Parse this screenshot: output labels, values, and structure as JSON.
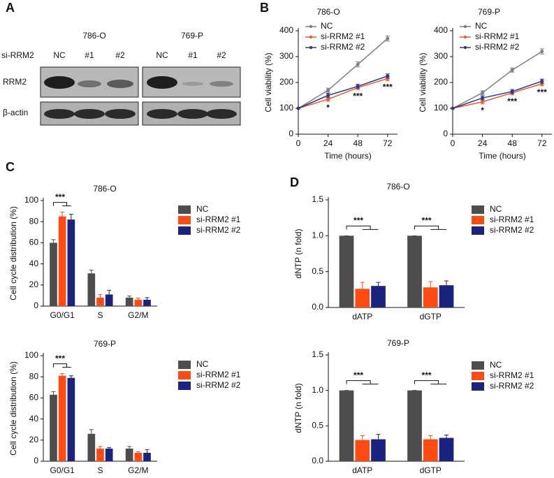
{
  "panel_labels": [
    "A",
    "B",
    "C",
    "D"
  ],
  "blot": {
    "cell_lines": [
      "786-O",
      "769-P"
    ],
    "row_label": "si-RRM2",
    "lanes": [
      "NC",
      "#1",
      "#2"
    ],
    "proteins": [
      "RRM2",
      "β-actin"
    ]
  },
  "chart_data": [
    {
      "type": "line",
      "title": "786-O",
      "xlabel": "Time (hours)",
      "ylabel": "Cell viability (%)",
      "x": [
        0,
        24,
        48,
        72
      ],
      "xlim": [
        0,
        80
      ],
      "xticks": [
        0,
        24,
        48,
        72
      ],
      "ylim": [
        0,
        400
      ],
      "yticks": [
        0,
        100,
        200,
        300,
        400
      ],
      "legend": "upper left",
      "annotations": [
        null,
        "*",
        "***",
        "***"
      ],
      "series": [
        {
          "name": "NC",
          "color": "#7f7f7f",
          "values": [
            100,
            170,
            270,
            370
          ],
          "errors": [
            0,
            8,
            10,
            10
          ]
        },
        {
          "name": "si-RRM2 #1",
          "color": "#f05a28",
          "values": [
            100,
            135,
            180,
            215
          ],
          "errors": [
            0,
            8,
            8,
            8
          ]
        },
        {
          "name": "si-RRM2 #2",
          "color": "#2b3a8c",
          "values": [
            100,
            150,
            185,
            225
          ],
          "errors": [
            0,
            8,
            8,
            8
          ]
        }
      ]
    },
    {
      "type": "line",
      "title": "769-P",
      "xlabel": "Time (hours)",
      "ylabel": "Cell viability (%)",
      "x": [
        0,
        24,
        48,
        72
      ],
      "xlim": [
        0,
        80
      ],
      "xticks": [
        0,
        24,
        48,
        72
      ],
      "ylim": [
        0,
        400
      ],
      "yticks": [
        0,
        100,
        200,
        300,
        400
      ],
      "legend": "upper left",
      "annotations": [
        null,
        "*",
        "***",
        "***"
      ],
      "series": [
        {
          "name": "NC",
          "color": "#7f7f7f",
          "values": [
            100,
            160,
            248,
            320
          ],
          "errors": [
            0,
            8,
            8,
            10
          ]
        },
        {
          "name": "si-RRM2 #1",
          "color": "#f05a28",
          "values": [
            100,
            125,
            160,
            195
          ],
          "errors": [
            0,
            8,
            8,
            8
          ]
        },
        {
          "name": "si-RRM2 #2",
          "color": "#2b3a8c",
          "values": [
            100,
            140,
            165,
            205
          ],
          "errors": [
            0,
            8,
            8,
            8
          ]
        }
      ]
    },
    {
      "type": "bar",
      "title": "786-O",
      "ylabel": "Cell cycle distribution (%)",
      "categories": [
        "G0/G1",
        "S",
        "G2/M"
      ],
      "ylim": [
        0,
        100
      ],
      "yticks": [
        0,
        20,
        40,
        60,
        80,
        100
      ],
      "legend": "right",
      "annotations": [
        "***",
        null,
        null
      ],
      "series": [
        {
          "name": "NC",
          "color": "#4d4d4d",
          "values": [
            60,
            31,
            8
          ],
          "errors": [
            3,
            3,
            1.5
          ]
        },
        {
          "name": "si-RRM2 #1",
          "color": "#ff4a12",
          "values": [
            85,
            8,
            6
          ],
          "errors": [
            4,
            3,
            1.5
          ]
        },
        {
          "name": "si-RRM2 #2",
          "color": "#1a237e",
          "values": [
            82,
            11,
            6
          ],
          "errors": [
            5,
            4,
            2
          ]
        }
      ]
    },
    {
      "type": "bar",
      "title": "769-P",
      "ylabel": "Cell cycle distribution (%)",
      "categories": [
        "G0/G1",
        "S",
        "G2/M"
      ],
      "ylim": [
        0,
        100
      ],
      "yticks": [
        0,
        20,
        40,
        60,
        80,
        100
      ],
      "legend": "right",
      "annotations": [
        "***",
        null,
        null
      ],
      "series": [
        {
          "name": "NC",
          "color": "#4d4d4d",
          "values": [
            63,
            26,
            12
          ],
          "errors": [
            3,
            4,
            2
          ]
        },
        {
          "name": "si-RRM2 #1",
          "color": "#ff4a12",
          "values": [
            81,
            12,
            8
          ],
          "errors": [
            2,
            2,
            1
          ]
        },
        {
          "name": "si-RRM2 #2",
          "color": "#1a237e",
          "values": [
            79,
            12,
            8
          ],
          "errors": [
            2,
            1,
            3
          ]
        }
      ]
    },
    {
      "type": "bar",
      "title": "786-O",
      "ylabel": "dNTP (n fold)",
      "categories": [
        "dATP",
        "dGTP"
      ],
      "ylim": [
        0,
        1.5
      ],
      "yticks": [
        {
          "value": 0,
          "label": "0.0"
        },
        0.5,
        {
          "value": 1,
          "label": "1.0"
        },
        1.5
      ],
      "legend": "right",
      "annotations": [
        "***",
        "***"
      ],
      "series": [
        {
          "name": "NC",
          "color": "#4d4d4d",
          "values": [
            1,
            1
          ],
          "errors": [
            0,
            0
          ]
        },
        {
          "name": "si-RRM2 #1",
          "color": "#ff4a12",
          "values": [
            0.26,
            0.28
          ],
          "errors": [
            0.09,
            0.08
          ]
        },
        {
          "name": "si-RRM2 #2",
          "color": "#1a237e",
          "values": [
            0.3,
            0.31
          ],
          "errors": [
            0.05,
            0.06
          ]
        }
      ]
    },
    {
      "type": "bar",
      "title": "769-P",
      "ylabel": "dNTP (n fold)",
      "categories": [
        "dATP",
        "dGTP"
      ],
      "ylim": [
        0,
        1.5
      ],
      "yticks": [
        {
          "value": 0,
          "label": "0.0"
        },
        0.5,
        {
          "value": 1,
          "label": "1.0"
        },
        1.5
      ],
      "legend": "right",
      "annotations": [
        "***",
        "***"
      ],
      "series": [
        {
          "name": "NC",
          "color": "#4d4d4d",
          "values": [
            1,
            1
          ],
          "errors": [
            0,
            0
          ]
        },
        {
          "name": "si-RRM2 #1",
          "color": "#ff4a12",
          "values": [
            0.3,
            0.31
          ],
          "errors": [
            0.06,
            0.05
          ]
        },
        {
          "name": "si-RRM2 #2",
          "color": "#1a237e",
          "values": [
            0.31,
            0.33
          ],
          "errors": [
            0.07,
            0.04
          ]
        }
      ]
    }
  ]
}
